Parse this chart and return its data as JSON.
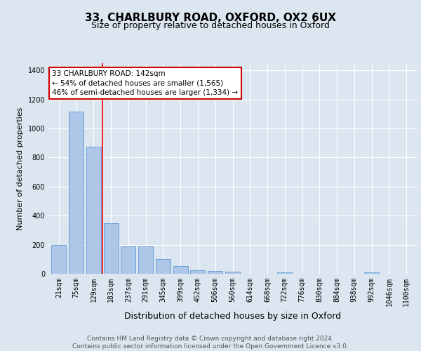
{
  "title1": "33, CHARLBURY ROAD, OXFORD, OX2 6UX",
  "title2": "Size of property relative to detached houses in Oxford",
  "xlabel": "Distribution of detached houses by size in Oxford",
  "ylabel": "Number of detached properties",
  "categories": [
    "21sqm",
    "75sqm",
    "129sqm",
    "183sqm",
    "237sqm",
    "291sqm",
    "345sqm",
    "399sqm",
    "452sqm",
    "506sqm",
    "560sqm",
    "614sqm",
    "668sqm",
    "722sqm",
    "776sqm",
    "830sqm",
    "884sqm",
    "938sqm",
    "992sqm",
    "1046sqm",
    "1100sqm"
  ],
  "values": [
    197,
    1117,
    875,
    350,
    188,
    190,
    100,
    53,
    22,
    18,
    15,
    0,
    0,
    8,
    0,
    0,
    0,
    0,
    8,
    0,
    0
  ],
  "bar_color": "#aec6e8",
  "bar_edge_color": "#5b9bd5",
  "red_line_x": 2.5,
  "annotation_text": "33 CHARLBURY ROAD: 142sqm\n← 54% of detached houses are smaller (1,565)\n46% of semi-detached houses are larger (1,334) →",
  "annotation_box_color": "#ffffff",
  "annotation_border_color": "#cc0000",
  "ylim": [
    0,
    1450
  ],
  "yticks": [
    0,
    200,
    400,
    600,
    800,
    1000,
    1200,
    1400
  ],
  "background_color": "#dce6f0",
  "plot_bg_color": "#dce6f0",
  "footer_text": "Contains HM Land Registry data © Crown copyright and database right 2024.\nContains public sector information licensed under the Open Government Licence v3.0.",
  "title1_fontsize": 11,
  "title2_fontsize": 9,
  "xlabel_fontsize": 9,
  "ylabel_fontsize": 8,
  "tick_fontsize": 7,
  "footer_fontsize": 6.5,
  "ann_fontsize": 7.5
}
